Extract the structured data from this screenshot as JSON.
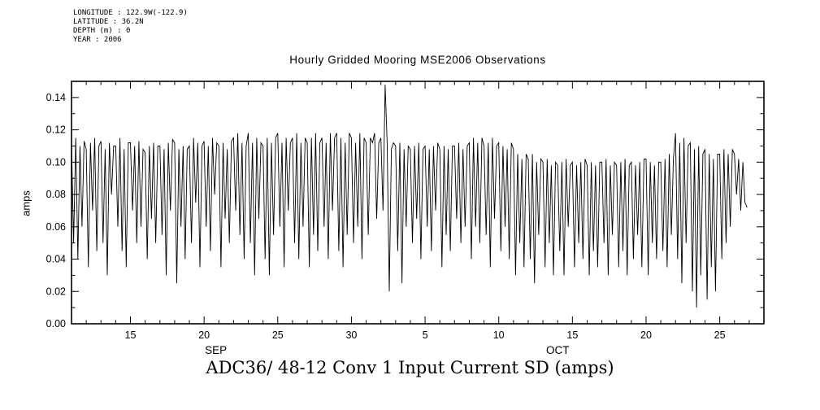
{
  "metadata": {
    "longitude": "LONGITUDE : 122.9W(-122.9)",
    "latitude": "LATITUDE : 36.2N",
    "depth": "DEPTH (m) : 0",
    "year": "YEAR : 2006"
  },
  "title": "Hourly Gridded Mooring MSE2006 Observations",
  "bottom_title": "ADC36/ 48-12 Conv 1 Input Current SD (amps)",
  "y_axis_label": "amps",
  "colors": {
    "line": "#000000",
    "background": "#ffffff"
  },
  "chart_data": {
    "type": "line",
    "title": "Hourly Gridded Mooring MSE2006 Observations",
    "subtitle": "ADC36/ 48-12 Conv 1 Input Current SD (amps)",
    "xlabel": "",
    "ylabel": "amps",
    "ylim": [
      0.0,
      0.15
    ],
    "y_ticks": [
      0.0,
      0.02,
      0.04,
      0.06,
      0.08,
      0.1,
      0.12,
      0.14
    ],
    "x_domain_days": [
      0,
      47
    ],
    "x_start_date": "2006-09-11",
    "x_major_ticks": [
      {
        "day": 4,
        "label": "15"
      },
      {
        "day": 9,
        "label": "20"
      },
      {
        "day": 14,
        "label": "25"
      },
      {
        "day": 19,
        "label": "30"
      },
      {
        "day": 24,
        "label": "5"
      },
      {
        "day": 29,
        "label": "10"
      },
      {
        "day": 34,
        "label": "15"
      },
      {
        "day": 39,
        "label": "20"
      },
      {
        "day": 44,
        "label": "25"
      }
    ],
    "month_labels": [
      {
        "label": "SEP",
        "day": 9.8
      },
      {
        "label": "OCT",
        "day": 33.0
      }
    ],
    "grid": false,
    "legend": "none",
    "sample_interval_days": 0.142857,
    "values": [
      0.112,
      0.05,
      0.115,
      0.04,
      0.11,
      0.06,
      0.113,
      0.108,
      0.035,
      0.112,
      0.07,
      0.115,
      0.045,
      0.11,
      0.113,
      0.05,
      0.108,
      0.03,
      0.112,
      0.08,
      0.11,
      0.11,
      0.06,
      0.115,
      0.045,
      0.108,
      0.035,
      0.112,
      0.112,
      0.07,
      0.11,
      0.05,
      0.113,
      0.06,
      0.108,
      0.106,
      0.04,
      0.11,
      0.065,
      0.112,
      0.05,
      0.11,
      0.11,
      0.055,
      0.108,
      0.03,
      0.112,
      0.07,
      0.114,
      0.112,
      0.025,
      0.108,
      0.06,
      0.11,
      0.04,
      0.108,
      0.11,
      0.05,
      0.115,
      0.075,
      0.112,
      0.035,
      0.11,
      0.113,
      0.06,
      0.11,
      0.045,
      0.115,
      0.08,
      0.112,
      0.11,
      0.035,
      0.112,
      0.065,
      0.108,
      0.05,
      0.113,
      0.115,
      0.07,
      0.118,
      0.055,
      0.112,
      0.04,
      0.11,
      0.118,
      0.05,
      0.112,
      0.03,
      0.115,
      0.065,
      0.112,
      0.11,
      0.04,
      0.115,
      0.03,
      0.112,
      0.055,
      0.115,
      0.118,
      0.06,
      0.112,
      0.035,
      0.115,
      0.07,
      0.112,
      0.115,
      0.05,
      0.118,
      0.04,
      0.112,
      0.06,
      0.115,
      0.112,
      0.035,
      0.115,
      0.055,
      0.118,
      0.045,
      0.112,
      0.115,
      0.06,
      0.112,
      0.04,
      0.118,
      0.07,
      0.115,
      0.118,
      0.045,
      0.115,
      0.035,
      0.112,
      0.055,
      0.118,
      0.115,
      0.05,
      0.112,
      0.06,
      0.118,
      0.04,
      0.115,
      0.112,
      0.055,
      0.115,
      0.112,
      0.118,
      0.065,
      0.112,
      0.115,
      0.07,
      0.148,
      0.112,
      0.02,
      0.108,
      0.112,
      0.11,
      0.045,
      0.112,
      0.025,
      0.108,
      0.06,
      0.11,
      0.108,
      0.05,
      0.11,
      0.065,
      0.112,
      0.04,
      0.108,
      0.11,
      0.06,
      0.108,
      0.045,
      0.11,
      0.07,
      0.112,
      0.108,
      0.035,
      0.11,
      0.055,
      0.108,
      0.045,
      0.11,
      0.11,
      0.065,
      0.112,
      0.05,
      0.108,
      0.06,
      0.11,
      0.112,
      0.04,
      0.115,
      0.06,
      0.112,
      0.05,
      0.115,
      0.11,
      0.055,
      0.112,
      0.035,
      0.115,
      0.065,
      0.11,
      0.112,
      0.045,
      0.11,
      0.06,
      0.108,
      0.04,
      0.112,
      0.108,
      0.03,
      0.105,
      0.05,
      0.102,
      0.035,
      0.105,
      0.102,
      0.04,
      0.105,
      0.025,
      0.1,
      0.055,
      0.102,
      0.1,
      0.035,
      0.102,
      0.05,
      0.098,
      0.03,
      0.1,
      0.098,
      0.045,
      0.1,
      0.03,
      0.102,
      0.06,
      0.098,
      0.1,
      0.035,
      0.098,
      0.05,
      0.1,
      0.04,
      0.102,
      0.098,
      0.03,
      0.1,
      0.045,
      0.098,
      0.035,
      0.1,
      0.1,
      0.05,
      0.102,
      0.03,
      0.098,
      0.055,
      0.1,
      0.098,
      0.035,
      0.1,
      0.045,
      0.102,
      0.03,
      0.098,
      0.1,
      0.04,
      0.098,
      0.055,
      0.1,
      0.035,
      0.102,
      0.102,
      0.03,
      0.1,
      0.05,
      0.098,
      0.04,
      0.1,
      0.1,
      0.045,
      0.102,
      0.035,
      0.105,
      0.055,
      0.102,
      0.118,
      0.04,
      0.112,
      0.025,
      0.115,
      0.05,
      0.11,
      0.112,
      0.02,
      0.108,
      0.01,
      0.11,
      0.03,
      0.105,
      0.108,
      0.015,
      0.105,
      0.035,
      0.102,
      0.02,
      0.105,
      0.105,
      0.04,
      0.108,
      0.05,
      0.105,
      0.06,
      0.108,
      0.105,
      0.08,
      0.102,
      0.07,
      0.1,
      0.075,
      0.072
    ]
  }
}
